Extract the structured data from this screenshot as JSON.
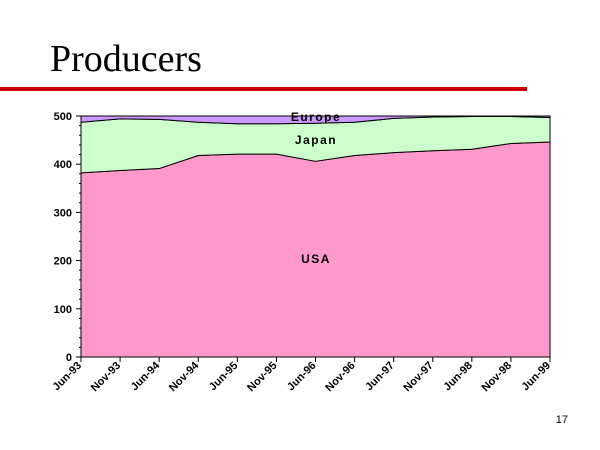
{
  "slide": {
    "title": "Producers",
    "page_number": "17"
  },
  "colors": {
    "title_rule": "#cc0000",
    "usa": "#ff99cc",
    "japan": "#ccffcc",
    "europe": "#cc99ff"
  },
  "chart_data": {
    "type": "area",
    "stacked": true,
    "x": [
      "Jun-93",
      "Nov-93",
      "Jun-94",
      "Nov-94",
      "Jun-95",
      "Nov-95",
      "Jun-96",
      "Nov-96",
      "Jun-97",
      "Nov-97",
      "Jun-98",
      "Nov-98",
      "Jun-99"
    ],
    "series": [
      {
        "name": "USA",
        "color": "#ff99cc",
        "values": [
          382,
          387,
          391,
          418,
          421,
          421,
          406,
          418,
          424,
          428,
          431,
          443,
          446
        ]
      },
      {
        "name": "Japan",
        "color": "#ccffcc",
        "values": [
          105,
          107,
          102,
          69,
          63,
          63,
          79,
          69,
          71,
          70,
          68,
          56,
          51
        ]
      },
      {
        "name": "Europe",
        "color": "#cc99ff",
        "values": [
          13,
          6,
          7,
          13,
          16,
          16,
          15,
          13,
          5,
          2,
          1,
          1,
          3
        ]
      }
    ],
    "ylim": [
      0,
      500
    ],
    "yticks": [
      "0",
      "100",
      "200",
      "300",
      "400",
      "500"
    ],
    "xlabel": "",
    "ylabel": "",
    "grid": false,
    "legend": "inline labels"
  }
}
